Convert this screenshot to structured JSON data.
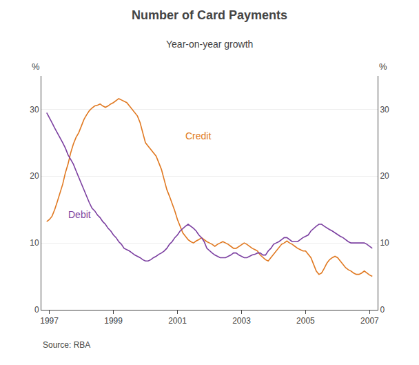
{
  "chart_data": {
    "type": "line",
    "title": "Number of Card Payments",
    "subtitle": "Year-on-year growth",
    "source": "Source: RBA",
    "ylabel": "%",
    "y2label": "%",
    "x": [
      1996.917,
      1997.0,
      1997.083,
      1997.167,
      1997.25,
      1997.333,
      1997.417,
      1997.5,
      1997.583,
      1997.667,
      1997.75,
      1997.833,
      1997.917,
      1998.0,
      1998.083,
      1998.167,
      1998.25,
      1998.333,
      1998.417,
      1998.5,
      1998.583,
      1998.667,
      1998.75,
      1998.833,
      1998.917,
      1999.0,
      1999.083,
      1999.167,
      1999.25,
      1999.333,
      1999.417,
      1999.5,
      1999.583,
      1999.667,
      1999.75,
      1999.833,
      1999.917,
      2000.0,
      2000.083,
      2000.167,
      2000.25,
      2000.333,
      2000.417,
      2000.5,
      2000.583,
      2000.667,
      2000.75,
      2000.833,
      2000.917,
      2001.0,
      2001.083,
      2001.167,
      2001.25,
      2001.333,
      2001.417,
      2001.5,
      2001.583,
      2001.667,
      2001.75,
      2001.833,
      2001.917,
      2002.0,
      2002.083,
      2002.167,
      2002.25,
      2002.333,
      2002.417,
      2002.5,
      2002.583,
      2002.667,
      2002.75,
      2002.833,
      2002.917,
      2003.0,
      2003.083,
      2003.167,
      2003.25,
      2003.333,
      2003.417,
      2003.5,
      2003.583,
      2003.667,
      2003.75,
      2003.833,
      2003.917,
      2004.0,
      2004.083,
      2004.167,
      2004.25,
      2004.333,
      2004.417,
      2004.5,
      2004.583,
      2004.667,
      2004.75,
      2004.833,
      2004.917,
      2005.0,
      2005.083,
      2005.167,
      2005.25,
      2005.333,
      2005.417,
      2005.5,
      2005.583,
      2005.667,
      2005.75,
      2005.833,
      2005.917,
      2006.0,
      2006.083,
      2006.167,
      2006.25,
      2006.333,
      2006.417,
      2006.5,
      2006.583,
      2006.667,
      2006.75,
      2006.833,
      2006.917,
      2007.0,
      2007.083
    ],
    "series": [
      {
        "name": "Credit",
        "color": "#E07820",
        "values": [
          13.2,
          13.5,
          14.0,
          15.0,
          16.2,
          17.5,
          18.8,
          20.5,
          21.8,
          23.5,
          24.8,
          25.8,
          26.5,
          27.5,
          28.5,
          29.2,
          29.8,
          30.2,
          30.5,
          30.6,
          30.8,
          30.5,
          30.3,
          30.5,
          30.8,
          31.0,
          31.3,
          31.6,
          31.4,
          31.2,
          31.0,
          30.5,
          30.0,
          29.5,
          29.0,
          28.0,
          26.5,
          25.0,
          24.5,
          24.0,
          23.5,
          23.0,
          22.0,
          21.0,
          19.5,
          18.0,
          17.0,
          16.0,
          14.8,
          13.5,
          12.5,
          11.5,
          11.0,
          10.5,
          10.2,
          10.0,
          10.3,
          10.5,
          10.8,
          10.5,
          10.2,
          10.0,
          9.8,
          9.5,
          9.8,
          10.0,
          10.2,
          10.0,
          9.8,
          9.5,
          9.2,
          9.2,
          9.5,
          9.8,
          10.0,
          9.8,
          9.5,
          9.2,
          9.0,
          8.8,
          8.2,
          7.8,
          7.5,
          7.3,
          7.8,
          8.3,
          8.8,
          9.3,
          9.8,
          10.0,
          10.3,
          10.0,
          9.8,
          9.5,
          9.2,
          9.0,
          8.8,
          8.8,
          8.3,
          7.8,
          6.8,
          5.8,
          5.3,
          5.5,
          6.2,
          7.0,
          7.5,
          7.8,
          8.0,
          7.8,
          7.3,
          6.8,
          6.3,
          6.0,
          5.8,
          5.5,
          5.3,
          5.3,
          5.5,
          5.8,
          5.5,
          5.2,
          5.0
        ]
      },
      {
        "name": "Debit",
        "color": "#7B3FA0",
        "values": [
          29.5,
          28.8,
          28.0,
          27.2,
          26.5,
          25.8,
          25.0,
          24.2,
          23.2,
          22.5,
          21.8,
          20.8,
          19.8,
          18.8,
          17.8,
          16.8,
          16.0,
          15.2,
          14.8,
          14.2,
          13.8,
          13.2,
          12.8,
          12.2,
          11.8,
          11.2,
          10.8,
          10.2,
          9.8,
          9.2,
          9.0,
          8.8,
          8.5,
          8.2,
          8.0,
          7.8,
          7.5,
          7.3,
          7.3,
          7.5,
          7.8,
          8.0,
          8.3,
          8.5,
          8.8,
          9.2,
          9.8,
          10.2,
          10.8,
          11.2,
          11.8,
          12.2,
          12.5,
          12.8,
          12.5,
          12.2,
          11.8,
          11.2,
          10.8,
          10.2,
          9.2,
          8.8,
          8.5,
          8.2,
          8.0,
          7.8,
          7.8,
          7.8,
          8.0,
          8.2,
          8.5,
          8.5,
          8.2,
          8.0,
          7.8,
          7.8,
          8.0,
          8.2,
          8.3,
          8.5,
          8.5,
          8.2,
          8.2,
          8.8,
          9.2,
          9.8,
          10.0,
          10.2,
          10.5,
          10.8,
          10.8,
          10.5,
          10.2,
          10.2,
          10.2,
          10.5,
          10.8,
          11.0,
          11.2,
          11.8,
          12.2,
          12.5,
          12.8,
          12.8,
          12.5,
          12.2,
          12.0,
          11.8,
          11.5,
          11.2,
          11.0,
          10.8,
          10.5,
          10.2,
          10.0,
          10.0,
          10.0,
          10.0,
          10.0,
          10.0,
          9.8,
          9.5,
          9.2
        ]
      }
    ],
    "annotations": [
      {
        "text": "Credit",
        "x": 2001.2,
        "y": 25.0,
        "color": "#E07820"
      },
      {
        "text": "Debit",
        "x": 1997.55,
        "y": 13.2,
        "color": "#7B3FA0"
      }
    ],
    "xlim": [
      1996.75,
      2007.25
    ],
    "xticks": [
      1997,
      1999,
      2001,
      2003,
      2005,
      2007
    ],
    "ylim": [
      0,
      35
    ],
    "yticks": [
      0,
      10,
      20,
      30
    ],
    "y2lim": [
      0,
      35
    ],
    "y2ticks": [
      0,
      10,
      20,
      30
    ],
    "grid": true
  }
}
